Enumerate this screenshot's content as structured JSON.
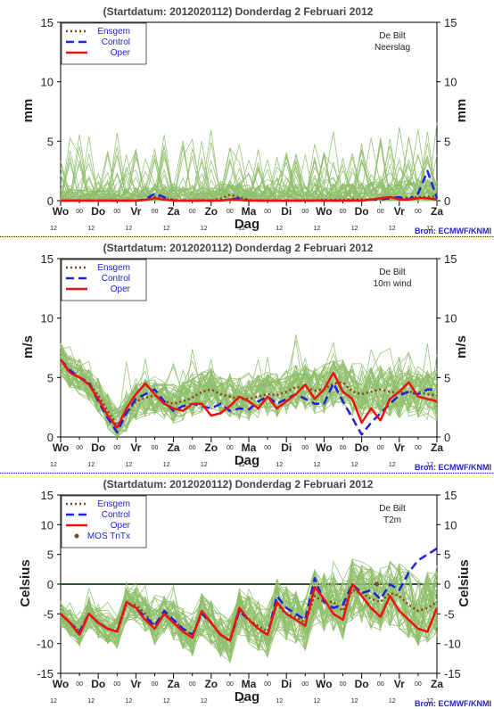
{
  "header": {
    "title": "(Startdatum: 2012020112)   Donderdag  2 Februari  2012",
    "location": "De Bilt",
    "source": "Bron: ECMWF/KNMI"
  },
  "legend_labels": {
    "ensgem": "Ensgem",
    "control": "Control",
    "oper": "Oper",
    "mos": "MOS TnTx"
  },
  "colors": {
    "ensgem": "#8b4513",
    "control": "#2222dd",
    "oper": "#ee1111",
    "members": "#8fbf6a",
    "mos": "#7a4a1a",
    "frame": "#000000",
    "separator": "#0000cc",
    "title_text": "#444444",
    "source_text": "#2222cc"
  },
  "x_axis": {
    "title": "Dag",
    "tick_labels": [
      "Wo",
      "Do",
      "Vr",
      "Za",
      "Zo",
      "Ma",
      "Di",
      "Wo",
      "Do",
      "Vr",
      "Za"
    ],
    "hour_labels": [
      "12",
      "12",
      "12",
      "12",
      "12",
      "12",
      "12",
      "12",
      "12",
      "12",
      "12"
    ],
    "minor_tick_label": "00",
    "steps_per_day": 4,
    "days": 10
  },
  "chart_data": [
    {
      "type": "line",
      "name": "precip",
      "subtitle": "Neerslag",
      "ylabel": "mm",
      "ylim": [
        0,
        15
      ],
      "yticks": [
        0,
        5,
        10,
        15
      ],
      "legend": [
        "ensgem",
        "control",
        "oper"
      ],
      "legend_position": "top-left",
      "zero_line": false,
      "clip_min": 0,
      "x": [
        0,
        0.25,
        0.5,
        0.75,
        1,
        1.25,
        1.5,
        1.75,
        2,
        2.25,
        2.5,
        2.75,
        3,
        3.25,
        3.5,
        3.75,
        4,
        4.25,
        4.5,
        4.75,
        5,
        5.25,
        5.5,
        5.75,
        6,
        6.25,
        6.5,
        6.75,
        7,
        7.25,
        7.5,
        7.75,
        8,
        8.25,
        8.5,
        8.75,
        9,
        9.25,
        9.5,
        9.75,
        10
      ],
      "series": [
        {
          "key": "ensgem",
          "name": "Ensgem",
          "values": [
            0,
            0,
            0,
            0,
            0,
            0,
            0,
            0,
            0,
            0.05,
            0.3,
            0.25,
            0.05,
            0,
            0,
            0.05,
            0,
            0.15,
            0.5,
            0.3,
            0.05,
            0,
            0,
            0,
            0,
            0,
            0,
            0.02,
            0.05,
            0.05,
            0.05,
            0.1,
            0.1,
            0.1,
            0.15,
            0.2,
            0.2,
            0.25,
            0.3,
            0.3,
            0.35
          ]
        },
        {
          "key": "control",
          "name": "Control",
          "values": [
            0,
            0,
            0,
            0,
            0,
            0,
            0,
            0,
            0,
            0.1,
            0.6,
            0.3,
            0,
            0,
            0,
            0,
            0,
            0,
            0.1,
            0.2,
            0,
            0,
            0,
            0,
            0,
            0,
            0,
            0,
            0,
            0,
            0,
            0,
            0,
            0.1,
            0.1,
            0.2,
            0.3,
            0.1,
            0.6,
            2.5,
            0.2
          ]
        },
        {
          "key": "oper",
          "name": "Oper",
          "values": [
            0,
            0,
            0,
            0,
            0,
            0,
            0,
            0,
            0,
            0.05,
            0.2,
            0.1,
            0,
            0,
            0,
            0,
            0,
            0,
            0.1,
            0.05,
            0,
            0,
            0,
            0,
            0,
            0,
            0,
            0,
            0,
            0,
            0,
            0,
            0,
            0.1,
            0.2,
            0.3,
            0.1,
            0.1,
            0.2,
            0.2,
            0.1
          ]
        }
      ],
      "members": {
        "count": 50,
        "seed": 17,
        "spread": 1.0,
        "spike_prob": 0.12,
        "spike_max": 5.0
      }
    },
    {
      "type": "line",
      "name": "wind",
      "subtitle": "10m wind",
      "ylabel": "m/s",
      "ylim": [
        0,
        15
      ],
      "yticks": [
        0,
        5,
        10,
        15
      ],
      "legend": [
        "ensgem",
        "control",
        "oper"
      ],
      "legend_position": "top-left",
      "zero_line": false,
      "clip_min": 0,
      "x": [
        0,
        0.25,
        0.5,
        0.75,
        1,
        1.25,
        1.5,
        1.75,
        2,
        2.25,
        2.5,
        2.75,
        3,
        3.25,
        3.5,
        3.75,
        4,
        4.25,
        4.5,
        4.75,
        5,
        5.25,
        5.5,
        5.75,
        6,
        6.25,
        6.5,
        6.75,
        7,
        7.25,
        7.5,
        7.75,
        8,
        8.25,
        8.5,
        8.75,
        9,
        9.25,
        9.5,
        9.75,
        10
      ],
      "series": [
        {
          "key": "ensgem",
          "name": "Ensgem",
          "values": [
            6.5,
            5.5,
            5.0,
            4.5,
            3.5,
            2.2,
            1.0,
            2.0,
            3.0,
            3.3,
            3.5,
            3.0,
            2.8,
            3.0,
            3.3,
            3.8,
            4.0,
            3.6,
            3.4,
            3.2,
            3.2,
            3.4,
            3.6,
            3.5,
            3.8,
            4.2,
            4.2,
            3.9,
            4.0,
            4.5,
            4.6,
            3.8,
            3.6,
            3.8,
            4.0,
            3.8,
            3.7,
            3.8,
            3.8,
            3.6,
            3.5
          ]
        },
        {
          "key": "control",
          "name": "Control",
          "values": [
            6.5,
            5.6,
            5.0,
            4.6,
            3.0,
            1.6,
            0.4,
            2.0,
            3.2,
            3.6,
            4.0,
            3.0,
            2.2,
            2.6,
            2.8,
            2.6,
            2.4,
            2.8,
            2.2,
            2.4,
            2.3,
            3.0,
            3.4,
            2.8,
            3.2,
            3.6,
            3.2,
            2.8,
            2.8,
            4.5,
            3.0,
            1.6,
            0.2,
            1.2,
            2.0,
            2.8,
            3.5,
            3.8,
            3.6,
            4.0,
            4.0
          ]
        },
        {
          "key": "oper",
          "name": "Oper",
          "values": [
            6.5,
            5.4,
            5.0,
            4.4,
            3.2,
            1.8,
            0.8,
            2.4,
            3.6,
            4.5,
            3.6,
            2.8,
            2.4,
            2.2,
            2.8,
            2.8,
            1.8,
            2.0,
            2.6,
            3.4,
            3.0,
            2.4,
            3.4,
            2.4,
            3.0,
            3.6,
            4.4,
            3.2,
            4.0,
            5.4,
            3.8,
            3.2,
            1.2,
            2.4,
            1.4,
            3.2,
            3.8,
            4.6,
            3.4,
            3.2,
            3.0
          ]
        }
      ],
      "members": {
        "count": 50,
        "seed": 29,
        "spread": 1.4,
        "spike_prob": 0.06,
        "spike_max": 3.0
      }
    },
    {
      "type": "line",
      "name": "t2m",
      "subtitle": "T2m",
      "ylabel": "Celsius",
      "ylim": [
        -15,
        15
      ],
      "yticks": [
        -15,
        -10,
        -5,
        0,
        5,
        10,
        15
      ],
      "legend": [
        "ensgem",
        "control",
        "oper",
        "mos"
      ],
      "legend_position": "top-left",
      "zero_line": true,
      "clip_min": null,
      "x": [
        0,
        0.25,
        0.5,
        0.75,
        1,
        1.25,
        1.5,
        1.75,
        2,
        2.25,
        2.5,
        2.75,
        3,
        3.25,
        3.5,
        3.75,
        4,
        4.25,
        4.5,
        4.75,
        5,
        5.25,
        5.5,
        5.75,
        6,
        6.25,
        6.5,
        6.75,
        7,
        7.25,
        7.5,
        7.75,
        8,
        8.25,
        8.5,
        8.75,
        9,
        9.25,
        9.5,
        9.75,
        10
      ],
      "series": [
        {
          "key": "ensgem",
          "name": "Ensgem",
          "values": [
            -5.0,
            -6.5,
            -8.0,
            -5.0,
            -6.5,
            -7.5,
            -8.0,
            -3.5,
            -3.5,
            -5.0,
            -7.0,
            -5.0,
            -6.0,
            -7.5,
            -8.5,
            -5.0,
            -6.5,
            -8.5,
            -9.5,
            -4.5,
            -6.0,
            -7.0,
            -8.0,
            -3.5,
            -5.0,
            -5.5,
            -6.5,
            -2.0,
            -3.0,
            -3.0,
            -4.5,
            -1.0,
            -1.5,
            -2.5,
            -3.0,
            -1.5,
            -2.0,
            -3.5,
            -4.5,
            -4.0,
            -3.0
          ]
        },
        {
          "key": "control",
          "name": "Control",
          "values": [
            -5.0,
            -6.5,
            -8.0,
            -5.0,
            -6.5,
            -7.5,
            -8.0,
            -3.0,
            -4.0,
            -5.5,
            -7.0,
            -4.5,
            -6.0,
            -7.5,
            -8.5,
            -5.0,
            -6.5,
            -8.5,
            -9.5,
            -4.5,
            -6.0,
            -7.5,
            -8.5,
            -2.0,
            -4.0,
            -5.0,
            -6.0,
            1.0,
            -3.0,
            -4.0,
            -3.5,
            0.0,
            -1.5,
            -1.0,
            -2.5,
            0.0,
            -1.0,
            2.0,
            4.0,
            5.0,
            6.0
          ]
        },
        {
          "key": "oper",
          "name": "Oper",
          "values": [
            -5.0,
            -6.5,
            -8.5,
            -5.0,
            -6.5,
            -7.5,
            -8.0,
            -3.0,
            -4.0,
            -6.0,
            -7.5,
            -5.0,
            -6.5,
            -8.0,
            -9.0,
            -4.5,
            -6.5,
            -8.5,
            -9.5,
            -4.0,
            -6.0,
            -7.5,
            -8.5,
            -3.0,
            -5.0,
            -6.0,
            -7.0,
            -0.5,
            -2.5,
            -5.0,
            -6.0,
            0.0,
            -2.0,
            -4.0,
            -5.5,
            -2.0,
            -4.5,
            -6.0,
            -7.5,
            -8.0,
            -4.0
          ]
        }
      ],
      "mos": {
        "x": [
          8.4
        ],
        "values": [
          0.0
        ]
      },
      "members": {
        "count": 50,
        "seed": 43,
        "spread": 2.2,
        "spike_prob": 0.04,
        "spike_max": 3.0,
        "grow": 1.8
      }
    }
  ]
}
